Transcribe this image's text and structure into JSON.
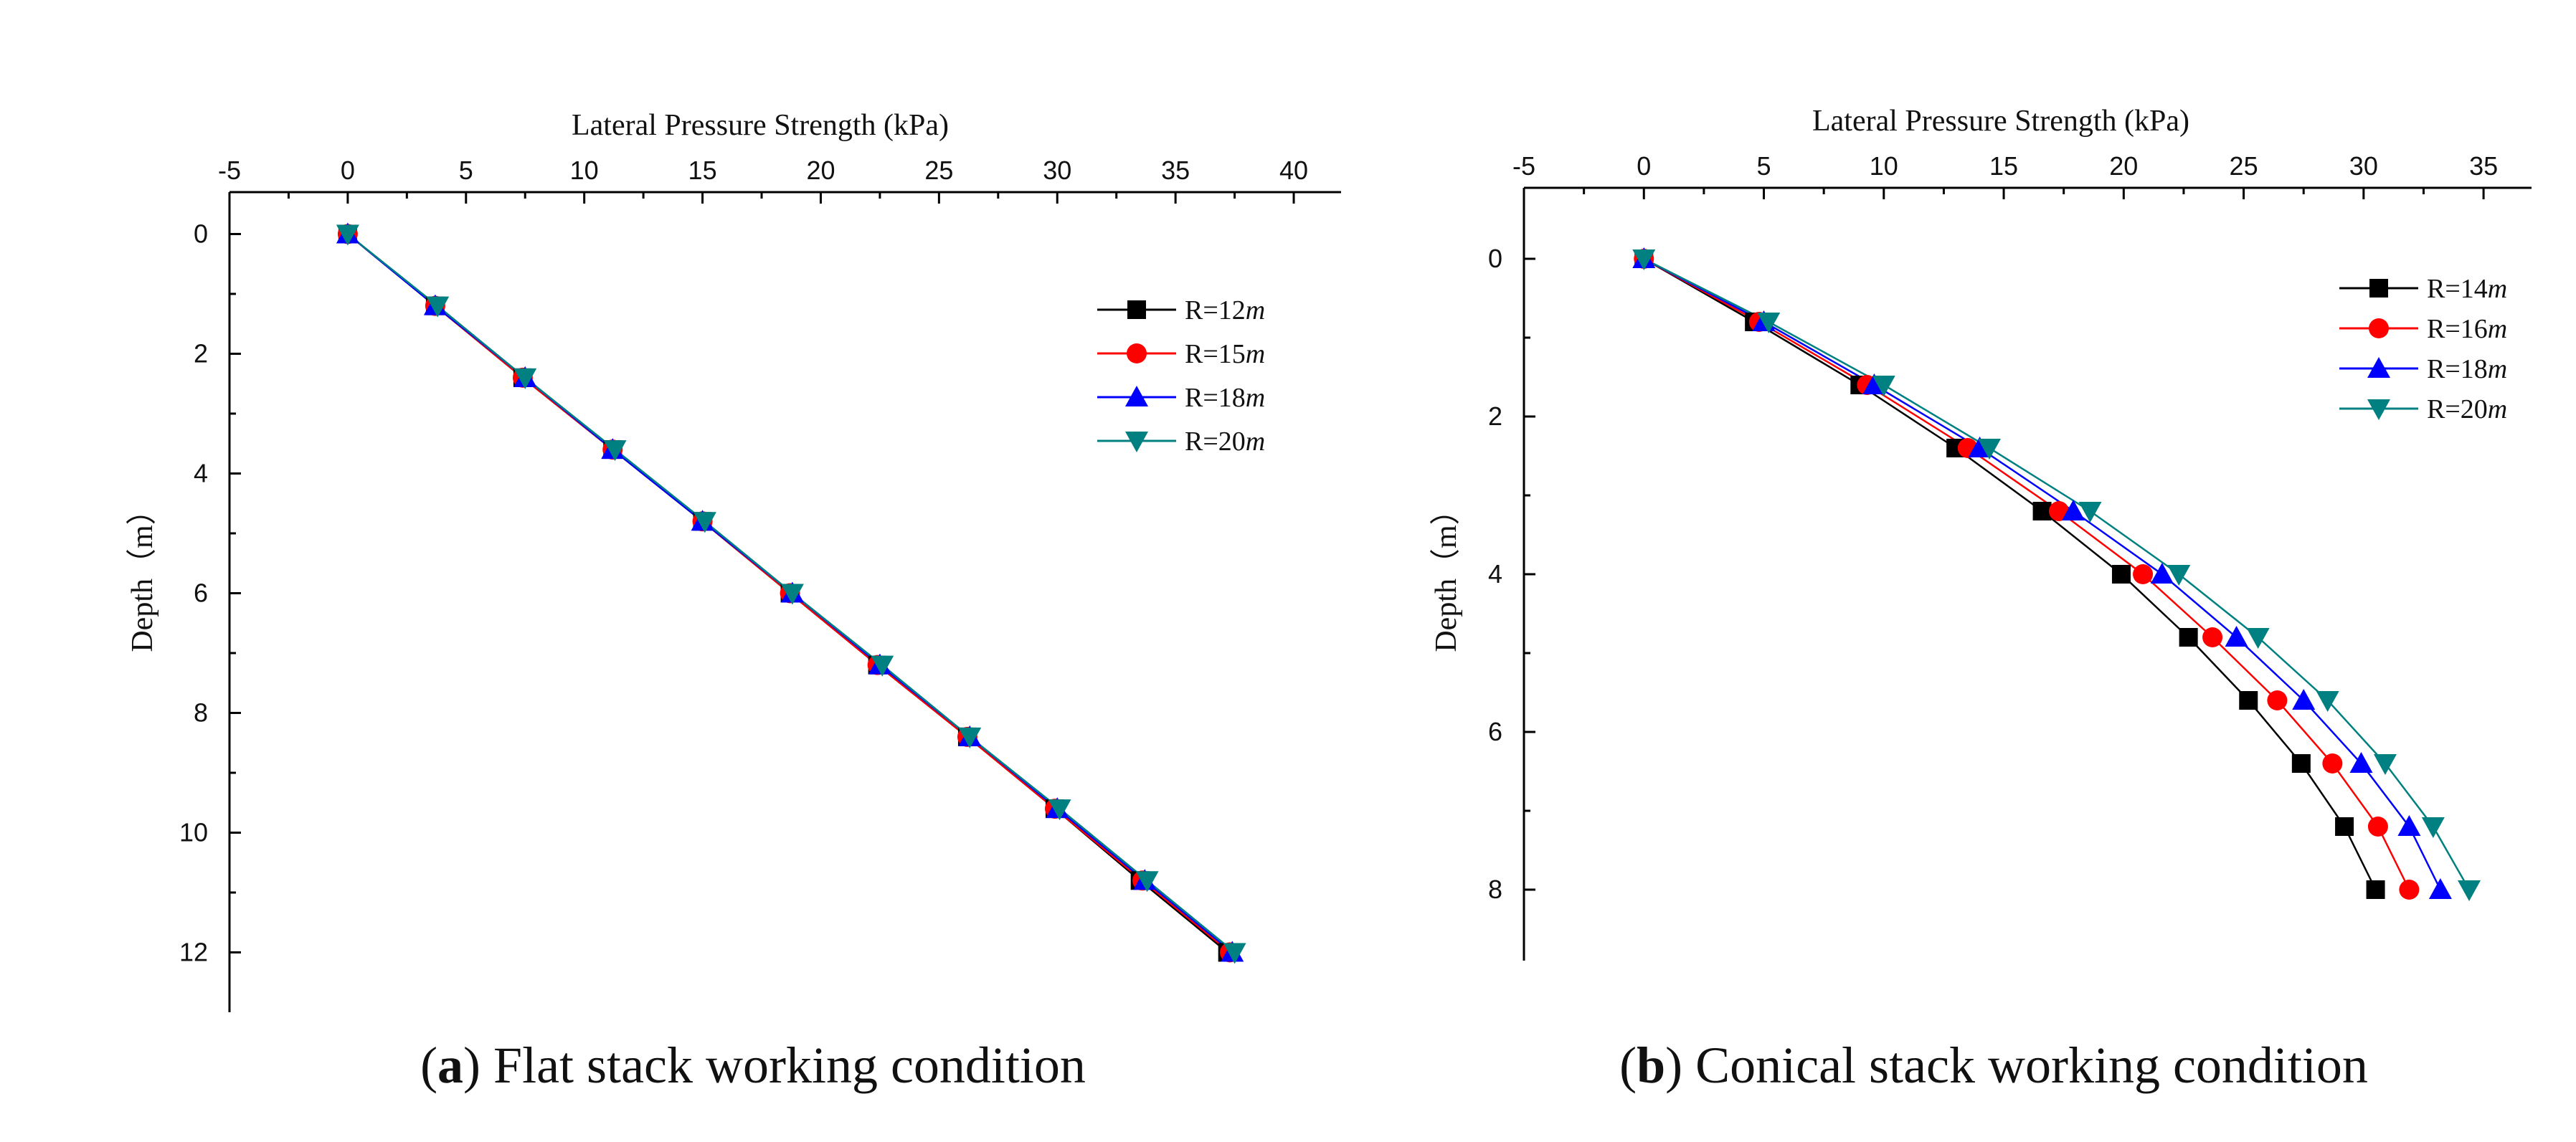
{
  "chart_data": [
    {
      "type": "line",
      "caption_letter": "a",
      "caption_text": " Flat stack working condition",
      "xlabel": "Lateral Pressure Strength (kPa)",
      "ylabel": "Depth（m）",
      "xlim": [
        -5,
        42
      ],
      "ylim": [
        -0.7,
        13
      ],
      "xticks": [
        -5,
        0,
        5,
        10,
        15,
        20,
        25,
        30,
        35,
        40
      ],
      "yticks": [
        0,
        2,
        4,
        6,
        8,
        10,
        12
      ],
      "series": [
        {
          "name": "R=12",
          "unit": "m",
          "color": "#000000",
          "marker": "square",
          "x": [
            0,
            3.7,
            7.4,
            11.2,
            15,
            18.7,
            22.4,
            26.2,
            29.9,
            33.5,
            37.2
          ],
          "y": [
            0,
            1.2,
            2.4,
            3.6,
            4.8,
            6,
            7.2,
            8.4,
            9.6,
            10.8,
            12
          ]
        },
        {
          "name": "R=15",
          "unit": "m",
          "color": "#ff0000",
          "marker": "circle",
          "x": [
            0,
            3.7,
            7.4,
            11.2,
            15,
            18.7,
            22.4,
            26.2,
            29.9,
            33.6,
            37.3
          ],
          "y": [
            0,
            1.2,
            2.4,
            3.6,
            4.8,
            6,
            7.2,
            8.4,
            9.6,
            10.8,
            12
          ]
        },
        {
          "name": "R=18",
          "unit": "m",
          "color": "#0000ff",
          "marker": "triangle-up",
          "x": [
            0,
            3.7,
            7.5,
            11.2,
            15,
            18.8,
            22.5,
            26.3,
            30,
            33.7,
            37.4
          ],
          "y": [
            0,
            1.2,
            2.4,
            3.6,
            4.8,
            6,
            7.2,
            8.4,
            9.6,
            10.8,
            12
          ]
        },
        {
          "name": "R=20",
          "unit": "m",
          "color": "#008080",
          "marker": "triangle-down",
          "x": [
            0,
            3.8,
            7.5,
            11.3,
            15.1,
            18.8,
            22.6,
            26.3,
            30.1,
            33.8,
            37.5
          ],
          "y": [
            0,
            1.2,
            2.4,
            3.6,
            4.8,
            6,
            7.2,
            8.4,
            9.6,
            10.8,
            12
          ]
        }
      ]
    },
    {
      "type": "line",
      "caption_letter": "b",
      "caption_text": " Conical stack working condition",
      "xlabel": "Lateral Pressure Strength (kPa)",
      "ylabel": "Depth（m）",
      "xlim": [
        -5,
        37
      ],
      "ylim": [
        -0.9,
        8.9
      ],
      "xticks": [
        -5,
        0,
        5,
        10,
        15,
        20,
        25,
        30,
        35
      ],
      "yticks": [
        0,
        2,
        4,
        6,
        8
      ],
      "series": [
        {
          "name": "R=14",
          "unit": "m",
          "color": "#000000",
          "marker": "square",
          "x": [
            0,
            4.6,
            9,
            13,
            16.6,
            19.9,
            22.7,
            25.2,
            27.4,
            29.2,
            30.5
          ],
          "y": [
            0,
            0.8,
            1.6,
            2.4,
            3.2,
            4,
            4.8,
            5.6,
            6.4,
            7.2,
            8
          ]
        },
        {
          "name": "R=16",
          "unit": "m",
          "color": "#ff0000",
          "marker": "circle",
          "x": [
            0,
            4.8,
            9.3,
            13.5,
            17.3,
            20.8,
            23.7,
            26.4,
            28.7,
            30.6,
            31.9
          ],
          "y": [
            0,
            0.8,
            1.6,
            2.4,
            3.2,
            4,
            4.8,
            5.6,
            6.4,
            7.2,
            8
          ]
        },
        {
          "name": "R=18",
          "unit": "m",
          "color": "#0000ff",
          "marker": "triangle-up",
          "x": [
            0,
            5,
            9.6,
            14,
            17.9,
            21.6,
            24.7,
            27.5,
            29.9,
            31.9,
            33.2
          ],
          "y": [
            0,
            0.8,
            1.6,
            2.4,
            3.2,
            4,
            4.8,
            5.6,
            6.4,
            7.2,
            8
          ]
        },
        {
          "name": "R=20",
          "unit": "m",
          "color": "#008080",
          "marker": "triangle-down",
          "x": [
            0,
            5.2,
            10,
            14.4,
            18.6,
            22.3,
            25.6,
            28.5,
            30.9,
            32.9,
            34.4
          ],
          "y": [
            0,
            0.8,
            1.6,
            2.4,
            3.2,
            4,
            4.8,
            5.6,
            6.4,
            7.2,
            8
          ]
        }
      ]
    }
  ]
}
